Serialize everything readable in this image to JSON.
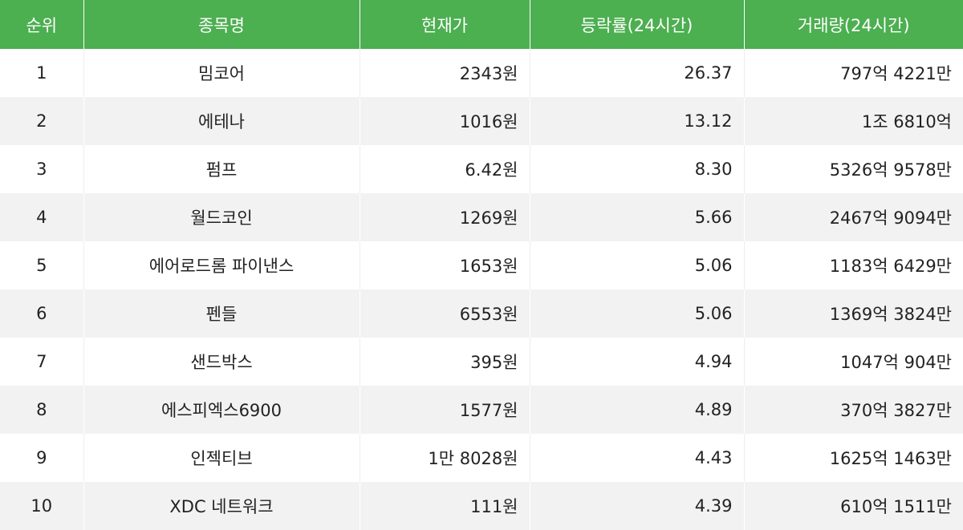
{
  "table": {
    "headers": {
      "rank": "순위",
      "name": "종목명",
      "price": "현재가",
      "change": "등락률(24시간)",
      "volume": "거래량(24시간)"
    },
    "rows": [
      {
        "rank": "1",
        "name": "밈코어",
        "price": "2343원",
        "change": "26.37",
        "volume": "797억 4221만"
      },
      {
        "rank": "2",
        "name": "에테나",
        "price": "1016원",
        "change": "13.12",
        "volume": "1조 6810억"
      },
      {
        "rank": "3",
        "name": "펌프",
        "price": "6.42원",
        "change": "8.30",
        "volume": "5326억 9578만"
      },
      {
        "rank": "4",
        "name": "월드코인",
        "price": "1269원",
        "change": "5.66",
        "volume": "2467억 9094만"
      },
      {
        "rank": "5",
        "name": "에어로드롬 파이낸스",
        "price": "1653원",
        "change": "5.06",
        "volume": "1183억 6429만"
      },
      {
        "rank": "6",
        "name": "펜들",
        "price": "6553원",
        "change": "5.06",
        "volume": "1369억 3824만"
      },
      {
        "rank": "7",
        "name": "샌드박스",
        "price": "395원",
        "change": "4.94",
        "volume": "1047억 904만"
      },
      {
        "rank": "8",
        "name": "에스피엑스6900",
        "price": "1577원",
        "change": "4.89",
        "volume": "370억 3827만"
      },
      {
        "rank": "9",
        "name": "인젝티브",
        "price": "1만 8028원",
        "change": "4.43",
        "volume": "1625억 1463만"
      },
      {
        "rank": "10",
        "name": "XDC 네트워크",
        "price": "111원",
        "change": "4.39",
        "volume": "610억 1511만"
      }
    ]
  },
  "colors": {
    "header_bg": "#4caf50",
    "header_text": "#ffffff",
    "row_alt_bg": "#f2f2f2"
  }
}
